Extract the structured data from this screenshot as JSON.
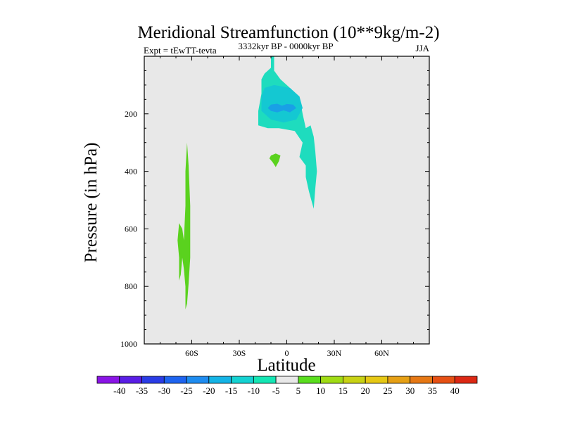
{
  "chart_data": {
    "type": "contour",
    "title": "Meridional Streamfunction (10**9kg/m-2)",
    "left_label": "Expt = tEwTT-tevta",
    "center_label": "3332kyr BP - 0000kyr BP",
    "right_label": "JJA",
    "xlabel": "Latitude",
    "ylabel": "Pressure (in hPa)",
    "xlim": [
      -90,
      90
    ],
    "ylim": [
      1000,
      0
    ],
    "x_ticks": [
      {
        "value": -60,
        "label": "60S"
      },
      {
        "value": -30,
        "label": "30S"
      },
      {
        "value": 0,
        "label": "0"
      },
      {
        "value": 30,
        "label": "30N"
      },
      {
        "value": 60,
        "label": "60N"
      }
    ],
    "y_ticks": [
      {
        "value": 200,
        "label": "200"
      },
      {
        "value": 400,
        "label": "400"
      },
      {
        "value": 600,
        "label": "600"
      },
      {
        "value": 800,
        "label": "800"
      },
      {
        "value": 1000,
        "label": "1000"
      }
    ],
    "colorbar": {
      "boundaries": [
        "-40",
        "-35",
        "-30",
        "-25",
        "-20",
        "-15",
        "-10",
        "-5",
        "5",
        "10",
        "15",
        "20",
        "25",
        "30",
        "35",
        "40"
      ],
      "colors": [
        "#8a14e6",
        "#5a1ee6",
        "#2a3ce6",
        "#1e64f0",
        "#1e8cf0",
        "#14b4e6",
        "#14d2d2",
        "#14e6b4",
        "#e8e8e8",
        "#5ade1e",
        "#a0dc14",
        "#c8d214",
        "#e6c814",
        "#e6a014",
        "#e67814",
        "#e65014",
        "#dc2814"
      ]
    },
    "regions": [
      {
        "name": "region-upper-trop-cyan",
        "level": "-10 to -5",
        "color": "#1edcbe",
        "points": [
          [
            -10,
            0
          ],
          [
            -10,
            40
          ],
          [
            -14,
            60
          ],
          [
            -16,
            80
          ],
          [
            -16,
            130
          ],
          [
            -18,
            190
          ],
          [
            -18,
            240
          ],
          [
            -12,
            250
          ],
          [
            -5,
            250
          ],
          [
            5,
            260
          ],
          [
            10,
            300
          ],
          [
            8,
            350
          ],
          [
            12,
            380
          ],
          [
            12,
            420
          ],
          [
            14,
            470
          ],
          [
            16,
            510
          ],
          [
            17,
            530
          ],
          [
            18,
            460
          ],
          [
            19,
            400
          ],
          [
            18,
            330
          ],
          [
            17,
            280
          ],
          [
            15,
            240
          ],
          [
            12,
            250
          ],
          [
            10,
            200
          ],
          [
            8,
            140
          ],
          [
            2,
            110
          ],
          [
            -4,
            80
          ],
          [
            -8,
            50
          ],
          [
            -8,
            0
          ]
        ]
      },
      {
        "name": "region-upper-trop-inner",
        "level": "-15 to -10",
        "color": "#14c8d2",
        "points": [
          [
            -14,
            110
          ],
          [
            -8,
            100
          ],
          [
            2,
            110
          ],
          [
            8,
            140
          ],
          [
            10,
            180
          ],
          [
            6,
            220
          ],
          [
            -2,
            230
          ],
          [
            -10,
            220
          ],
          [
            -16,
            190
          ],
          [
            -16,
            140
          ]
        ]
      },
      {
        "name": "region-upper-trop-core",
        "level": "-20 to -15",
        "color": "#19a0e6",
        "points": [
          [
            -10,
            168
          ],
          [
            -6,
            165
          ],
          [
            -3,
            172
          ],
          [
            0,
            166
          ],
          [
            4,
            168
          ],
          [
            6,
            180
          ],
          [
            2,
            195
          ],
          [
            -2,
            188
          ],
          [
            -6,
            195
          ],
          [
            -10,
            190
          ],
          [
            -12,
            180
          ]
        ]
      },
      {
        "name": "region-tropical-green-blob",
        "level": "5 to 10",
        "color": "#5ad21e",
        "points": [
          [
            -10,
            345
          ],
          [
            -7,
            338
          ],
          [
            -4,
            345
          ],
          [
            -5,
            365
          ],
          [
            -7,
            385
          ],
          [
            -9,
            368
          ],
          [
            -11,
            355
          ]
        ]
      },
      {
        "name": "region-southern-midlat-green",
        "level": "5 to 10",
        "color": "#5ad21e",
        "points": [
          [
            -63,
            300
          ],
          [
            -62,
            380
          ],
          [
            -61,
            520
          ],
          [
            -61,
            620
          ],
          [
            -61,
            700
          ],
          [
            -62,
            790
          ],
          [
            -63,
            860
          ],
          [
            -64,
            880
          ],
          [
            -64,
            800
          ],
          [
            -65,
            740
          ],
          [
            -66,
            700
          ],
          [
            -67,
            760
          ],
          [
            -68,
            780
          ],
          [
            -68,
            700
          ],
          [
            -69,
            640
          ],
          [
            -68,
            580
          ],
          [
            -66,
            600
          ],
          [
            -65,
            640
          ],
          [
            -64,
            520
          ],
          [
            -64,
            400
          ]
        ]
      }
    ]
  }
}
